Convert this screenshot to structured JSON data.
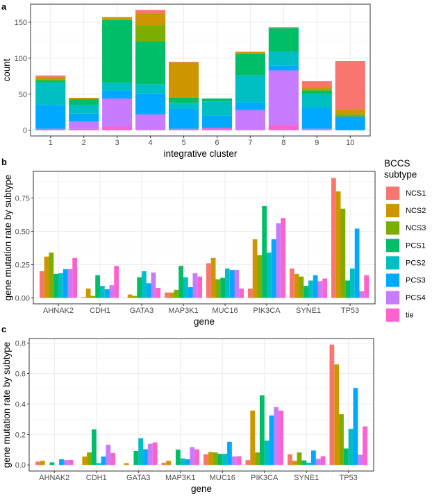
{
  "legend": {
    "title_line1": "BCCS",
    "title_line2": "subtype",
    "entries": [
      "NCS1",
      "NCS2",
      "NCS3",
      "PCS1",
      "PCS2",
      "PCS3",
      "PCS4",
      "tie"
    ],
    "colors": [
      "#F8766D",
      "#CD9600",
      "#7CAE00",
      "#00BE67",
      "#00BFC4",
      "#00A9FF",
      "#C77CFF",
      "#FF61CC"
    ]
  },
  "chart_data": [
    {
      "panel": "a",
      "type": "bar",
      "stacked": true,
      "xlabel": "integrative cluster",
      "ylabel": "count",
      "categories": [
        "1",
        "2",
        "3",
        "4",
        "5",
        "6",
        "7",
        "8",
        "9",
        "10"
      ],
      "ylim": [
        -8,
        175
      ],
      "yticks": [
        0,
        50,
        100,
        150
      ],
      "yticklabels": [
        "0",
        "50",
        "100",
        "150"
      ],
      "series": [
        {
          "name": "NCS1",
          "values": [
            2,
            0,
            0,
            5,
            1,
            0,
            0,
            1,
            8,
            67
          ]
        },
        {
          "name": "NCS2",
          "values": [
            4,
            2,
            3,
            16,
            49,
            0,
            3,
            0,
            4,
            7
          ]
        },
        {
          "name": "NCS3",
          "values": [
            1,
            0,
            1,
            23,
            0,
            0,
            0,
            0,
            1,
            3
          ]
        },
        {
          "name": "PCS1",
          "values": [
            3,
            8,
            87,
            59,
            7,
            4,
            30,
            33,
            5,
            0
          ]
        },
        {
          "name": "PCS2",
          "values": [
            31,
            12,
            11,
            13,
            8,
            20,
            37,
            19,
            19,
            0
          ]
        },
        {
          "name": "PCS3",
          "values": [
            33,
            11,
            11,
            29,
            28,
            17,
            11,
            7,
            29,
            19
          ]
        },
        {
          "name": "PCS4",
          "values": [
            0,
            10,
            39,
            22,
            0,
            0,
            28,
            76,
            2,
            0
          ]
        },
        {
          "name": "tie",
          "values": [
            2,
            2,
            5,
            0,
            2,
            3,
            0,
            7,
            0,
            0
          ]
        }
      ]
    },
    {
      "panel": "b",
      "type": "bar",
      "stacked": false,
      "xlabel": "gene",
      "ylabel": "gene mutation rate by subtype",
      "categories": [
        "AHNAK2",
        "CDH1",
        "GATA3",
        "MAP3K1",
        "MUC16",
        "PIK3CA",
        "SYNE1",
        "TP53"
      ],
      "ylim": [
        -0.045,
        0.95
      ],
      "yticks": [
        0,
        0.25,
        0.5,
        0.75
      ],
      "yticklabels": [
        "0.00",
        "0.25",
        "0.50",
        "0.75"
      ],
      "series": [
        {
          "name": "NCS1",
          "values": [
            0.2,
            0.005,
            0.002,
            0.04,
            0.26,
            0.07,
            0.22,
            0.9
          ]
        },
        {
          "name": "NCS2",
          "values": [
            0.31,
            0.07,
            0.025,
            0.04,
            0.3,
            0.44,
            0.18,
            0.8
          ]
        },
        {
          "name": "NCS3",
          "values": [
            0.34,
            0.015,
            0.015,
            0.06,
            0.14,
            0.32,
            0.16,
            0.67
          ]
        },
        {
          "name": "PCS1",
          "values": [
            0.18,
            0.17,
            0.155,
            0.24,
            0.15,
            0.69,
            0.09,
            0.13
          ]
        },
        {
          "name": "PCS2",
          "values": [
            0.185,
            0.09,
            0.2,
            0.155,
            0.22,
            0.34,
            0.13,
            0.22
          ]
        },
        {
          "name": "PCS3",
          "values": [
            0.215,
            0.065,
            0.11,
            0.08,
            0.21,
            0.44,
            0.17,
            0.52
          ]
        },
        {
          "name": "PCS4",
          "values": [
            0.215,
            0.095,
            0.19,
            0.185,
            0.21,
            0.56,
            0.125,
            0.05
          ]
        },
        {
          "name": "tie",
          "values": [
            0.3,
            0.24,
            0.075,
            0.16,
            0.07,
            0.6,
            0.145,
            0.17
          ]
        }
      ]
    },
    {
      "panel": "c",
      "type": "bar",
      "stacked": false,
      "xlabel": "gene",
      "ylabel": "gene mutation rate by subtype",
      "categories": [
        "AHNAK2",
        "CDH1",
        "GATA3",
        "MAP3K1",
        "MUC16",
        "PIK3CA",
        "SYNE1",
        "TP53"
      ],
      "ylim": [
        -0.04,
        0.83
      ],
      "yticks": [
        0,
        0.2,
        0.4,
        0.6,
        0.8
      ],
      "yticklabels": [
        "0.0",
        "0.2",
        "0.4",
        "0.6",
        "0.8"
      ],
      "series": [
        {
          "name": "NCS1",
          "values": [
            0.022,
            0,
            0,
            0.014,
            0.07,
            0.032,
            0.07,
            0.79
          ]
        },
        {
          "name": "NCS2",
          "values": [
            0.027,
            0.055,
            0.012,
            0.027,
            0.085,
            0.357,
            0.027,
            0.66
          ]
        },
        {
          "name": "NCS3",
          "values": [
            0,
            0.082,
            0,
            0,
            0.082,
            0.082,
            0.082,
            0.333
          ]
        },
        {
          "name": "PCS1",
          "values": [
            0.017,
            0.233,
            0.092,
            0.1,
            0.073,
            0.457,
            0.03,
            0.108
          ]
        },
        {
          "name": "PCS2",
          "values": [
            0,
            0.012,
            0.176,
            0.043,
            0.073,
            0.16,
            0.015,
            0.237
          ]
        },
        {
          "name": "PCS3",
          "values": [
            0.037,
            0.055,
            0.103,
            0.037,
            0.152,
            0.325,
            0.095,
            0.505
          ]
        },
        {
          "name": "PCS4",
          "values": [
            0.032,
            0.133,
            0.139,
            0.117,
            0.055,
            0.38,
            0.04,
            0.067
          ]
        },
        {
          "name": "tie",
          "values": [
            0.033,
            0.079,
            0.148,
            0.102,
            0.057,
            0.357,
            0.057,
            0.253
          ]
        }
      ]
    }
  ]
}
